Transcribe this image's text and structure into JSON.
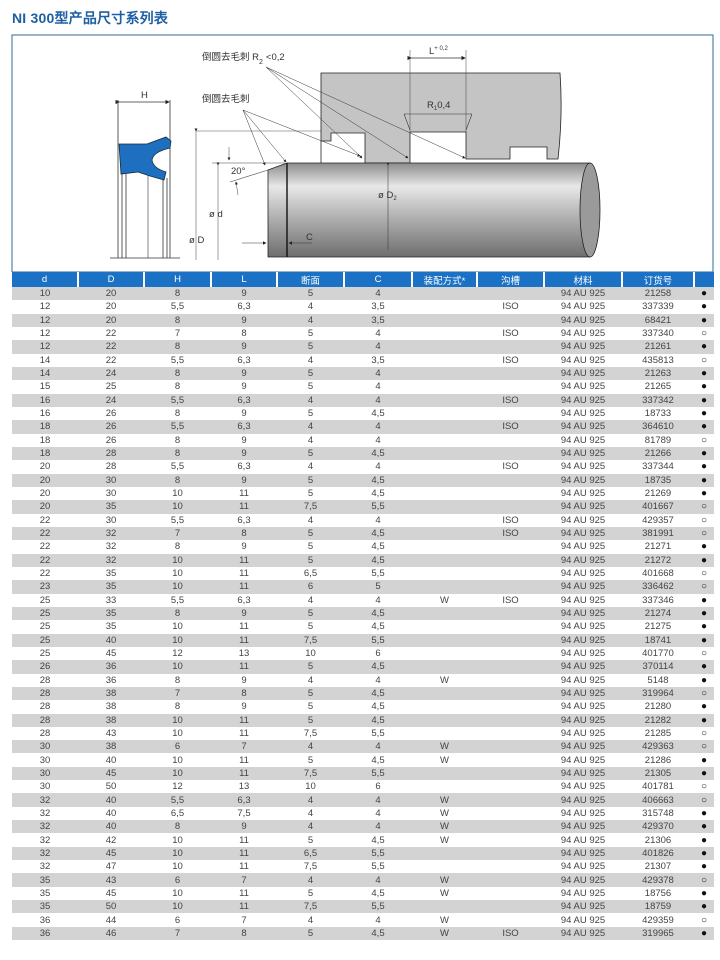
{
  "title": "NI 300型产品尺寸系列表",
  "diagram": {
    "label_r2": "倒圆去毛刺 R",
    "label_r2_sub": "2",
    "label_r2_val": "<0,2",
    "label_deburr": "倒圆去毛刺",
    "label_h": "H",
    "label_l": "L",
    "label_l_tol": "+ 0,2",
    "label_r1": "R",
    "label_r1_sub": "1",
    "label_r1_val": "0,4",
    "label_angle": "20°",
    "label_d": "ø d",
    "label_D": "ø D",
    "label_D2": "ø D",
    "label_D2_sub": "2",
    "label_c": "C",
    "seal_color": "#1e6fc0"
  },
  "table": {
    "header_color": "#1b72c4",
    "columns": [
      "d",
      "D",
      "H",
      "L",
      "断面",
      "C",
      "装配方式*",
      "沟槽",
      "材料",
      "订货号",
      ""
    ],
    "rows": [
      [
        "10",
        "20",
        "8",
        "9",
        "5",
        "4",
        "",
        "",
        "94 AU 925",
        "21258",
        "●"
      ],
      [
        "12",
        "20",
        "5,5",
        "6,3",
        "4",
        "3,5",
        "",
        "ISO",
        "94 AU 925",
        "337339",
        "●"
      ],
      [
        "12",
        "20",
        "8",
        "9",
        "4",
        "3,5",
        "",
        "",
        "94 AU 925",
        "68421",
        "●"
      ],
      [
        "12",
        "22",
        "7",
        "8",
        "5",
        "4",
        "",
        "ISO",
        "94 AU 925",
        "337340",
        "○"
      ],
      [
        "12",
        "22",
        "8",
        "9",
        "5",
        "4",
        "",
        "",
        "94 AU 925",
        "21261",
        "●"
      ],
      [
        "14",
        "22",
        "5,5",
        "6,3",
        "4",
        "3,5",
        "",
        "ISO",
        "94 AU 925",
        "435813",
        "○"
      ],
      [
        "14",
        "24",
        "8",
        "9",
        "5",
        "4",
        "",
        "",
        "94 AU 925",
        "21263",
        "●"
      ],
      [
        "15",
        "25",
        "8",
        "9",
        "5",
        "4",
        "",
        "",
        "94 AU 925",
        "21265",
        "●"
      ],
      [
        "16",
        "24",
        "5,5",
        "6,3",
        "4",
        "4",
        "",
        "ISO",
        "94 AU 925",
        "337342",
        "●"
      ],
      [
        "16",
        "26",
        "8",
        "9",
        "5",
        "4,5",
        "",
        "",
        "94 AU 925",
        "18733",
        "●"
      ],
      [
        "18",
        "26",
        "5,5",
        "6,3",
        "4",
        "4",
        "",
        "ISO",
        "94 AU 925",
        "364610",
        "●"
      ],
      [
        "18",
        "26",
        "8",
        "9",
        "4",
        "4",
        "",
        "",
        "94 AU 925",
        "81789",
        "○"
      ],
      [
        "18",
        "28",
        "8",
        "9",
        "5",
        "4,5",
        "",
        "",
        "94 AU 925",
        "21266",
        "●"
      ],
      [
        "20",
        "28",
        "5,5",
        "6,3",
        "4",
        "4",
        "",
        "ISO",
        "94 AU 925",
        "337344",
        "●"
      ],
      [
        "20",
        "30",
        "8",
        "9",
        "5",
        "4,5",
        "",
        "",
        "94 AU 925",
        "18735",
        "●"
      ],
      [
        "20",
        "30",
        "10",
        "11",
        "5",
        "4,5",
        "",
        "",
        "94 AU 925",
        "21269",
        "●"
      ],
      [
        "20",
        "35",
        "10",
        "11",
        "7,5",
        "5,5",
        "",
        "",
        "94 AU 925",
        "401667",
        "○"
      ],
      [
        "22",
        "30",
        "5,5",
        "6,3",
        "4",
        "4",
        "",
        "ISO",
        "94 AU 925",
        "429357",
        "○"
      ],
      [
        "22",
        "32",
        "7",
        "8",
        "5",
        "4,5",
        "",
        "ISO",
        "94 AU 925",
        "381991",
        "○"
      ],
      [
        "22",
        "32",
        "8",
        "9",
        "5",
        "4,5",
        "",
        "",
        "94 AU 925",
        "21271",
        "●"
      ],
      [
        "22",
        "32",
        "10",
        "11",
        "5",
        "4,5",
        "",
        "",
        "94 AU 925",
        "21272",
        "●"
      ],
      [
        "22",
        "35",
        "10",
        "11",
        "6,5",
        "5,5",
        "",
        "",
        "94 AU 925",
        "401668",
        "○"
      ],
      [
        "23",
        "35",
        "10",
        "11",
        "6",
        "5",
        "",
        "",
        "94 AU 925",
        "336462",
        "○"
      ],
      [
        "25",
        "33",
        "5,5",
        "6,3",
        "4",
        "4",
        "W",
        "ISO",
        "94 AU 925",
        "337346",
        "●"
      ],
      [
        "25",
        "35",
        "8",
        "9",
        "5",
        "4,5",
        "",
        "",
        "94 AU 925",
        "21274",
        "●"
      ],
      [
        "25",
        "35",
        "10",
        "11",
        "5",
        "4,5",
        "",
        "",
        "94 AU 925",
        "21275",
        "●"
      ],
      [
        "25",
        "40",
        "10",
        "11",
        "7,5",
        "5,5",
        "",
        "",
        "94 AU 925",
        "18741",
        "●"
      ],
      [
        "25",
        "45",
        "12",
        "13",
        "10",
        "6",
        "",
        "",
        "94 AU 925",
        "401770",
        "○"
      ],
      [
        "26",
        "36",
        "10",
        "11",
        "5",
        "4,5",
        "",
        "",
        "94 AU 925",
        "370114",
        "●"
      ],
      [
        "28",
        "36",
        "8",
        "9",
        "4",
        "4",
        "W",
        "",
        "94 AU 925",
        "5148",
        "●"
      ],
      [
        "28",
        "38",
        "7",
        "8",
        "5",
        "4,5",
        "",
        "",
        "94 AU 925",
        "319964",
        "○"
      ],
      [
        "28",
        "38",
        "8",
        "9",
        "5",
        "4,5",
        "",
        "",
        "94 AU 925",
        "21280",
        "●"
      ],
      [
        "28",
        "38",
        "10",
        "11",
        "5",
        "4,5",
        "",
        "",
        "94 AU 925",
        "21282",
        "●"
      ],
      [
        "28",
        "43",
        "10",
        "11",
        "7,5",
        "5,5",
        "",
        "",
        "94 AU 925",
        "21285",
        "○"
      ],
      [
        "30",
        "38",
        "6",
        "7",
        "4",
        "4",
        "W",
        "",
        "94 AU 925",
        "429363",
        "○"
      ],
      [
        "30",
        "40",
        "10",
        "11",
        "5",
        "4,5",
        "W",
        "",
        "94 AU 925",
        "21286",
        "●"
      ],
      [
        "30",
        "45",
        "10",
        "11",
        "7,5",
        "5,5",
        "",
        "",
        "94 AU 925",
        "21305",
        "●"
      ],
      [
        "30",
        "50",
        "12",
        "13",
        "10",
        "6",
        "",
        "",
        "94 AU 925",
        "401781",
        "○"
      ],
      [
        "32",
        "40",
        "5,5",
        "6,3",
        "4",
        "4",
        "W",
        "",
        "94 AU 925",
        "406663",
        "○"
      ],
      [
        "32",
        "40",
        "6,5",
        "7,5",
        "4",
        "4",
        "W",
        "",
        "94 AU 925",
        "315748",
        "●"
      ],
      [
        "32",
        "40",
        "8",
        "9",
        "4",
        "4",
        "W",
        "",
        "94 AU 925",
        "429370",
        "●"
      ],
      [
        "32",
        "42",
        "10",
        "11",
        "5",
        "4,5",
        "W",
        "",
        "94 AU 925",
        "21306",
        "●"
      ],
      [
        "32",
        "45",
        "10",
        "11",
        "6,5",
        "5,5",
        "",
        "",
        "94 AU 925",
        "401826",
        "●"
      ],
      [
        "32",
        "47",
        "10",
        "11",
        "7,5",
        "5,5",
        "",
        "",
        "94 AU 925",
        "21307",
        "●"
      ],
      [
        "35",
        "43",
        "6",
        "7",
        "4",
        "4",
        "W",
        "",
        "94 AU 925",
        "429378",
        "○"
      ],
      [
        "35",
        "45",
        "10",
        "11",
        "5",
        "4,5",
        "W",
        "",
        "94 AU 925",
        "18756",
        "●"
      ],
      [
        "35",
        "50",
        "10",
        "11",
        "7,5",
        "5,5",
        "",
        "",
        "94 AU 925",
        "18759",
        "●"
      ],
      [
        "36",
        "44",
        "6",
        "7",
        "4",
        "4",
        "W",
        "",
        "94 AU 925",
        "429359",
        "○"
      ],
      [
        "36",
        "46",
        "7",
        "8",
        "5",
        "4,5",
        "W",
        "ISO",
        "94 AU 925",
        "319965",
        "●"
      ]
    ]
  }
}
